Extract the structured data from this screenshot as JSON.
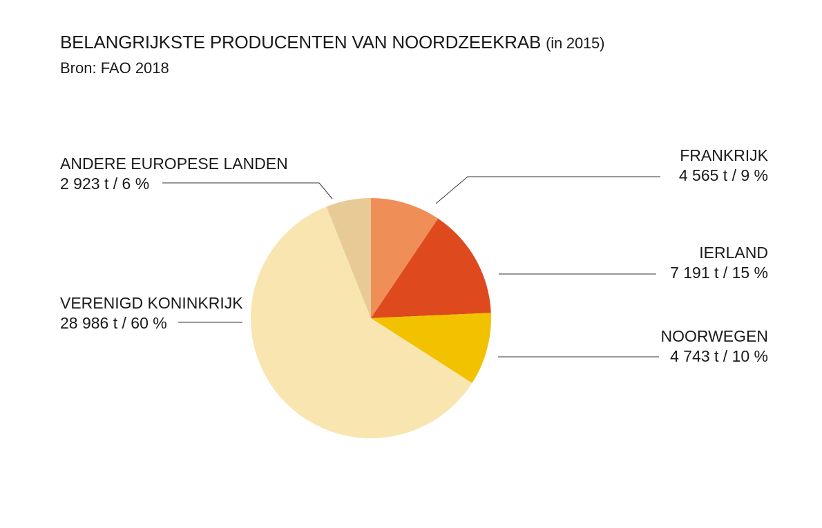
{
  "title": "BELANGRIJKSTE PRODUCENTEN VAN NOORDZEEKRAB",
  "title_year": "(in 2015)",
  "subtitle": "Bron: FAO 2018",
  "chart_data": {
    "type": "pie",
    "title": "BELANGRIJKSTE PRODUCENTEN VAN NOORDZEEKRAB (in 2015)",
    "slices": [
      {
        "label": "FRANKRIJK",
        "value": 4565,
        "percent": 9,
        "value_text": "4 565 t / 9 %",
        "color": "#f08e57"
      },
      {
        "label": "IERLAND",
        "value": 7191,
        "percent": 15,
        "value_text": "7 191 t / 15 %",
        "color": "#de4a1e"
      },
      {
        "label": "NOORWEGEN",
        "value": 4743,
        "percent": 10,
        "value_text": "4 743 t / 10 %",
        "color": "#f2c200"
      },
      {
        "label": "VERENIGD KONINKRIJK",
        "value": 28986,
        "percent": 60,
        "value_text": "28 986 t / 60 %",
        "color": "#f8e5b0"
      },
      {
        "label": "ANDERE EUROPESE LANDEN",
        "value": 2923,
        "percent": 6,
        "value_text": "2 923 t / 6 %",
        "color": "#e8ca96"
      }
    ],
    "start": "12 o'clock",
    "direction": "clockwise",
    "legend": "none (direct labels with leader lines)"
  }
}
